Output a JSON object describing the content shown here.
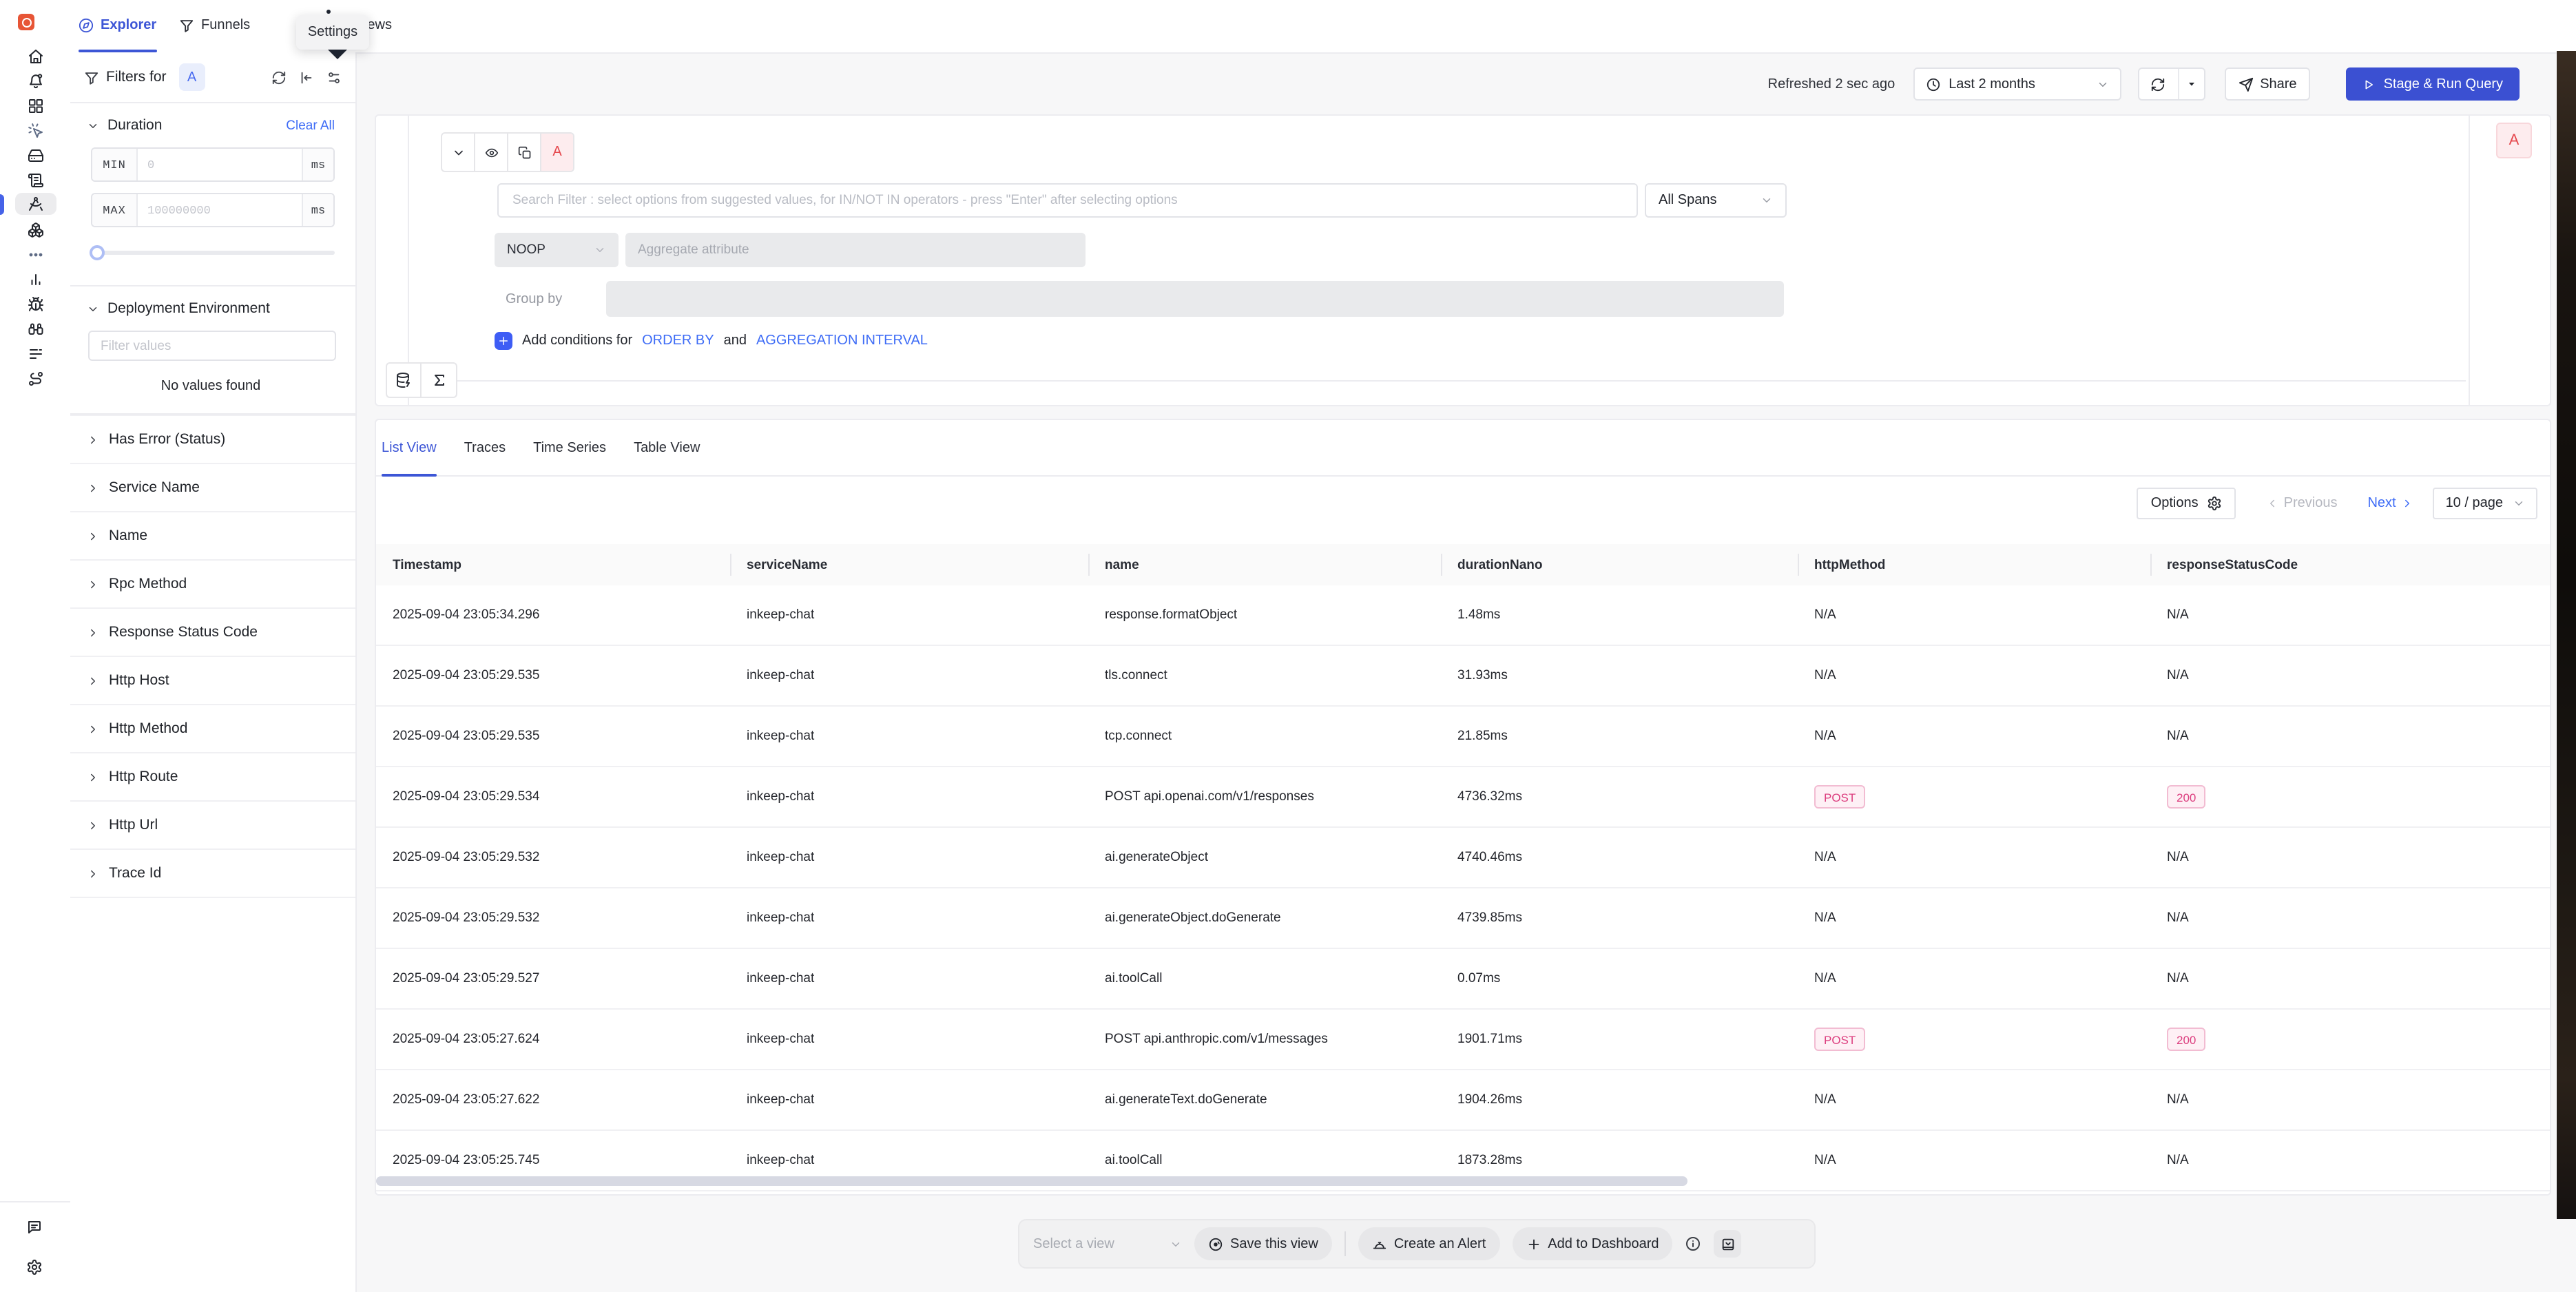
{
  "colors": {
    "accent": "#3d56d6",
    "link": "#3e6cf6",
    "danger": "#e5484d",
    "badge_pink": "#dc3d7e",
    "run_button": "#3b50d2"
  },
  "topbar": {
    "tabs": [
      {
        "label": "Explorer"
      },
      {
        "label": "Funnels"
      },
      {
        "label": "Views"
      }
    ],
    "tooltip": "Settings"
  },
  "controls": {
    "refreshed_label": "Refreshed 2 sec ago",
    "time_range": "Last 2 months",
    "share_label": "Share",
    "run_label": "Stage & Run Query"
  },
  "filters": {
    "title": "Filters for",
    "query_label": "A",
    "duration": {
      "label": "Duration",
      "clear_label": "Clear All",
      "min_label": "MIN",
      "min_placeholder": "0",
      "max_label": "MAX",
      "max_placeholder": "100000000",
      "unit": "ms"
    },
    "deployment": {
      "label": "Deployment Environment",
      "placeholder": "Filter values",
      "empty": "No values found"
    },
    "collapsed": [
      "Has Error (Status)",
      "Service Name",
      "Name",
      "Rpc Method",
      "Response Status Code",
      "Http Host",
      "Http Method",
      "Http Route",
      "Http Url",
      "Trace Id"
    ]
  },
  "query": {
    "label": "A",
    "search_placeholder": "Search Filter : select options from suggested values, for IN/NOT IN operators - press \"Enter\" after selecting options",
    "scope": "All Spans",
    "operator": "NOOP",
    "aggregate_placeholder": "Aggregate attribute",
    "group_by_label": "Group by",
    "conditions": {
      "prefix": "Add conditions for",
      "order_by": "ORDER BY",
      "and_word": "and",
      "aggregation_interval": "AGGREGATION INTERVAL"
    }
  },
  "results": {
    "tabs": [
      "List View",
      "Traces",
      "Time Series",
      "Table View"
    ],
    "active_tab": "List View",
    "options_label": "Options",
    "previous_label": "Previous",
    "next_label": "Next",
    "page_size": "10 / page"
  },
  "table": {
    "columns": [
      "Timestamp",
      "serviceName",
      "name",
      "durationNano",
      "httpMethod",
      "responseStatusCode"
    ],
    "rows": [
      [
        "2025-09-04 23:05:34.296",
        "inkeep-chat",
        "response.formatObject",
        "1.48ms",
        "N/A",
        "N/A"
      ],
      [
        "2025-09-04 23:05:29.535",
        "inkeep-chat",
        "tls.connect",
        "31.93ms",
        "N/A",
        "N/A"
      ],
      [
        "2025-09-04 23:05:29.535",
        "inkeep-chat",
        "tcp.connect",
        "21.85ms",
        "N/A",
        "N/A"
      ],
      [
        "2025-09-04 23:05:29.534",
        "inkeep-chat",
        "POST api.openai.com/v1/responses",
        "4736.32ms",
        {
          "text": "POST",
          "badge": true
        },
        {
          "text": "200",
          "badge": true
        }
      ],
      [
        "2025-09-04 23:05:29.532",
        "inkeep-chat",
        "ai.generateObject",
        "4740.46ms",
        "N/A",
        "N/A"
      ],
      [
        "2025-09-04 23:05:29.532",
        "inkeep-chat",
        "ai.generateObject.doGenerate",
        "4739.85ms",
        "N/A",
        "N/A"
      ],
      [
        "2025-09-04 23:05:29.527",
        "inkeep-chat",
        "ai.toolCall",
        "0.07ms",
        "N/A",
        "N/A"
      ],
      [
        "2025-09-04 23:05:27.624",
        "inkeep-chat",
        "POST api.anthropic.com/v1/messages",
        "1901.71ms",
        {
          "text": "POST",
          "badge": true
        },
        {
          "text": "200",
          "badge": true
        }
      ],
      [
        "2025-09-04 23:05:27.622",
        "inkeep-chat",
        "ai.generateText.doGenerate",
        "1904.26ms",
        "N/A",
        "N/A"
      ],
      [
        "2025-09-04 23:05:25.745",
        "inkeep-chat",
        "ai.toolCall",
        "1873.28ms",
        "N/A",
        "N/A"
      ]
    ]
  },
  "footer": {
    "select_view_placeholder": "Select a view",
    "save_view_label": "Save this view",
    "create_alert_label": "Create an Alert",
    "add_dashboard_label": "Add to Dashboard"
  }
}
